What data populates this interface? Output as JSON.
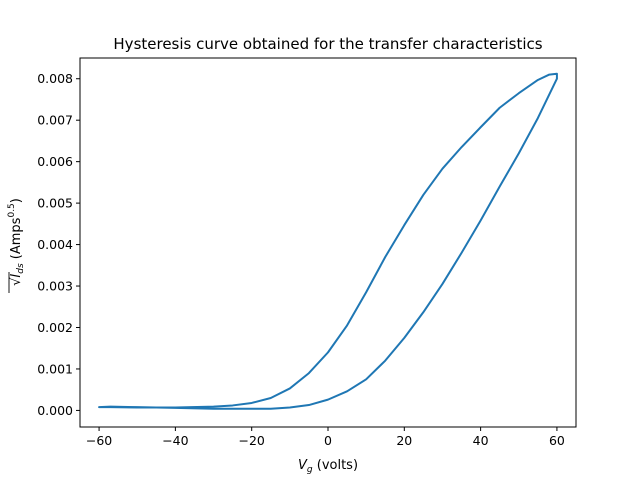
{
  "chart_data": {
    "type": "line",
    "title": "Hysteresis curve obtained for the transfer characteristics",
    "xlabel": {
      "main": "V",
      "sub": "g",
      "unit": " (volts)"
    },
    "ylabel": {
      "root": "√",
      "main": "I",
      "sub": "ds",
      "unit_pre": " (Amps",
      "unit_sup": "0.5",
      "unit_post": ")"
    },
    "xlim": [
      -65,
      65
    ],
    "ylim": [
      -0.0004,
      0.0085
    ],
    "xticks": [
      -60,
      -40,
      -20,
      0,
      20,
      40,
      60
    ],
    "xtick_labels": [
      "−60",
      "−40",
      "−20",
      "0",
      "20",
      "40",
      "60"
    ],
    "yticks": [
      0.0,
      0.001,
      0.002,
      0.003,
      0.004,
      0.005,
      0.006,
      0.007,
      0.008
    ],
    "ytick_labels": [
      "0.000",
      "0.001",
      "0.002",
      "0.003",
      "0.004",
      "0.005",
      "0.006",
      "0.007",
      "0.008"
    ],
    "grid": false,
    "line_color": "#1f77b4",
    "series": [
      {
        "x": [
          -60,
          -57,
          -50,
          -40,
          -30,
          -25,
          -20,
          -15,
          -10,
          -5,
          0,
          5,
          10,
          15,
          20,
          25,
          30,
          35,
          40,
          45,
          50,
          55,
          60,
          60,
          58,
          55,
          50,
          45,
          40,
          35,
          30,
          25,
          20,
          15,
          10,
          5,
          0,
          -5,
          -10,
          -15,
          -20,
          -25,
          -30,
          -40,
          -50,
          -57,
          -60
        ],
        "y": [
          8e-05,
          9e-05,
          8e-05,
          6e-05,
          4e-05,
          4e-05,
          4e-05,
          4e-05,
          7e-05,
          0.00013,
          0.00026,
          0.00046,
          0.00075,
          0.0012,
          0.00175,
          0.00237,
          0.00305,
          0.0038,
          0.00458,
          0.0054,
          0.0062,
          0.00705,
          0.008,
          0.00812,
          0.0081,
          0.00797,
          0.00765,
          0.0073,
          0.00683,
          0.00635,
          0.00583,
          0.0052,
          0.00447,
          0.0037,
          0.00285,
          0.00205,
          0.0014,
          0.0009,
          0.00053,
          0.0003,
          0.00018,
          0.00012,
          9e-05,
          7e-05,
          7e-05,
          8e-05,
          8e-05
        ]
      }
    ]
  }
}
